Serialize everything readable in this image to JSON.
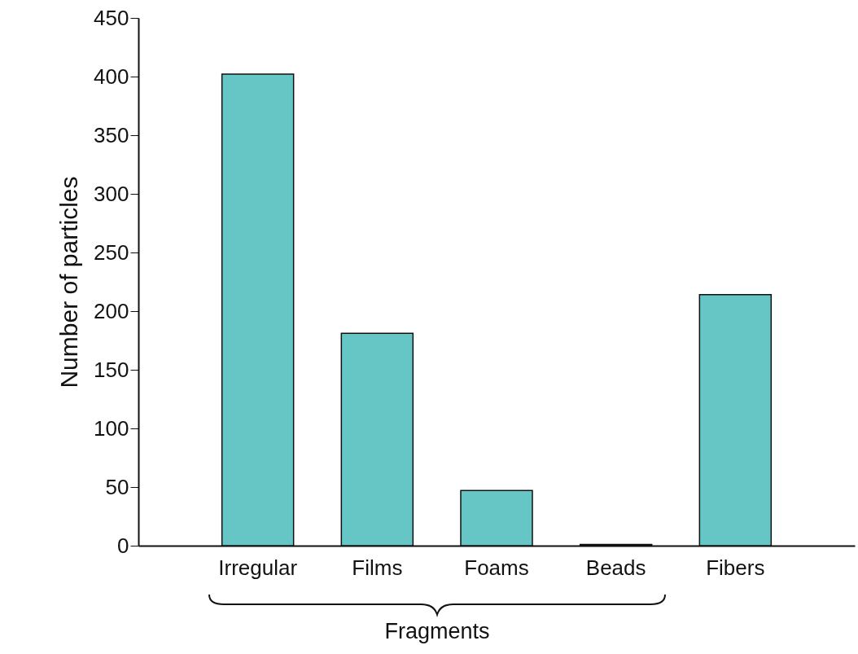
{
  "chart_data": {
    "type": "bar",
    "ylabel": "Number of particles",
    "categories": [
      "Irregular",
      "Films",
      "Foams",
      "Beads",
      "Fibers"
    ],
    "values": [
      402,
      181,
      47,
      1,
      214
    ],
    "color": "#66c5c5",
    "ylim": [
      0,
      450
    ],
    "yticks": [
      0,
      50,
      100,
      150,
      200,
      250,
      300,
      350,
      400,
      450
    ],
    "grid": false,
    "annotations": [
      "Fragments"
    ]
  }
}
